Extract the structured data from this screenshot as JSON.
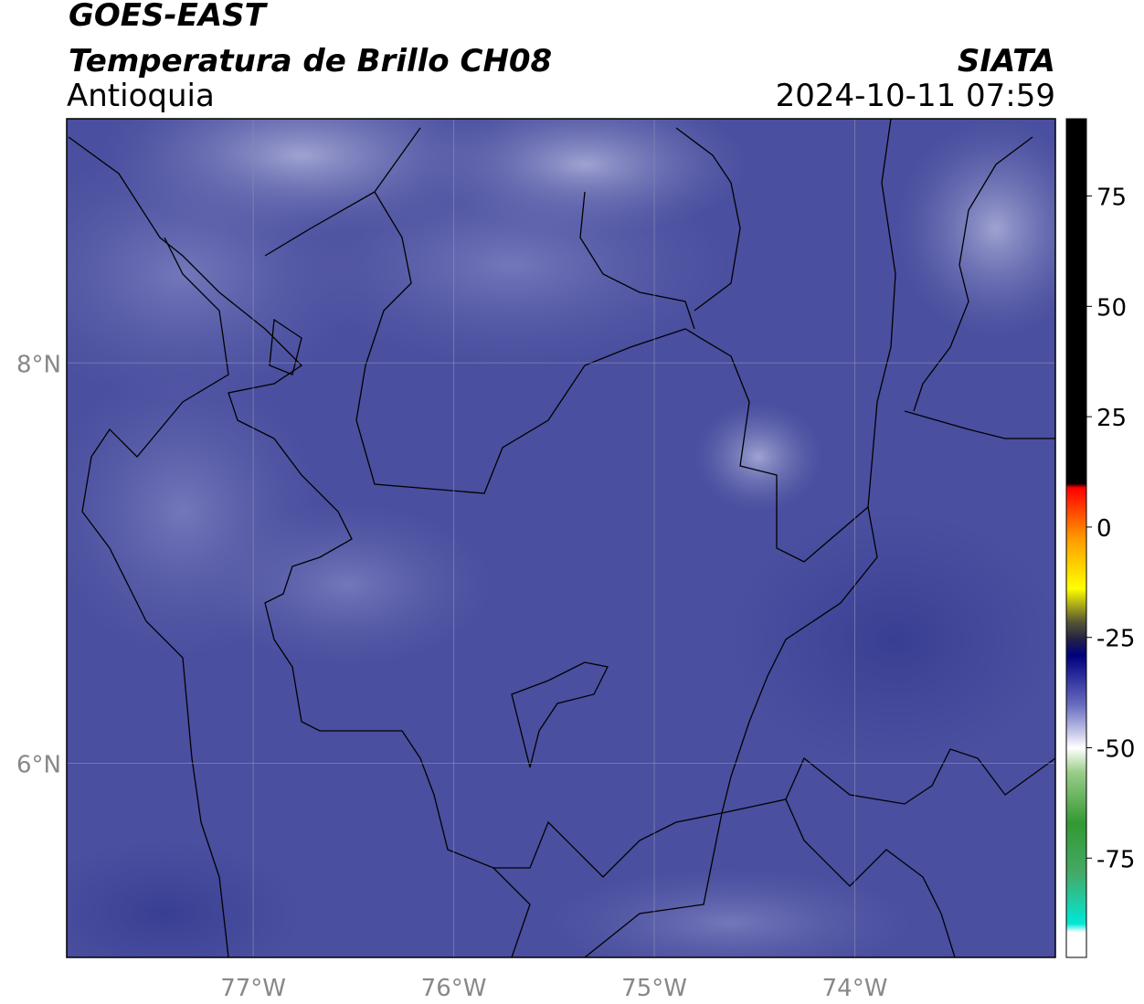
{
  "header": {
    "satellite": "GOES-EAST",
    "product": "Temperatura de Brillo CH08",
    "region": "Antioquia",
    "source": "SIATA",
    "datetime": "2024-10-11 07:59"
  },
  "map": {
    "xlim": [
      -77.93,
      -73.0
    ],
    "ylim": [
      5.03,
      9.22
    ],
    "xticks": [
      {
        "value": -77,
        "label": "77°W"
      },
      {
        "value": -76,
        "label": "76°W"
      },
      {
        "value": -75,
        "label": "75°W"
      },
      {
        "value": -74,
        "label": "74°W"
      }
    ],
    "yticks": [
      {
        "value": 8,
        "label": "8°N"
      },
      {
        "value": 6,
        "label": "6°N"
      }
    ],
    "grid": true
  },
  "colorbar": {
    "clim": [
      -97.5,
      92.5
    ],
    "ticks": [
      75,
      50,
      25,
      0,
      -25,
      -50,
      -75
    ]
  }
}
